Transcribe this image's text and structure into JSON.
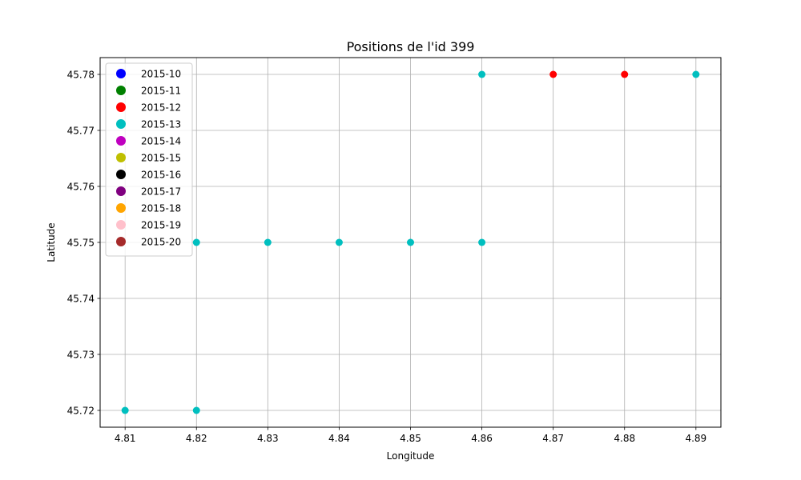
{
  "chart_data": {
    "type": "scatter",
    "title": "Positions de l'id 399",
    "xlabel": "Longitude",
    "ylabel": "Latitude",
    "xlim": [
      4.8065,
      4.8935
    ],
    "ylim": [
      45.717,
      45.783
    ],
    "xticks": [
      "4.81",
      "4.82",
      "4.83",
      "4.84",
      "4.85",
      "4.86",
      "4.87",
      "4.88",
      "4.89"
    ],
    "yticks": [
      "45.72",
      "45.73",
      "45.74",
      "45.75",
      "45.76",
      "45.77",
      "45.78"
    ],
    "grid": true,
    "legend_position": "upper-left",
    "series": [
      {
        "name": "2015-10",
        "color": "#0000ff",
        "points": []
      },
      {
        "name": "2015-11",
        "color": "#008000",
        "points": []
      },
      {
        "name": "2015-12",
        "color": "#ff0000",
        "points": [
          [
            4.87,
            45.78
          ],
          [
            4.88,
            45.78
          ]
        ]
      },
      {
        "name": "2015-13",
        "color": "#00bfbf",
        "points": [
          [
            4.81,
            45.72
          ],
          [
            4.82,
            45.72
          ],
          [
            4.82,
            45.75
          ],
          [
            4.83,
            45.75
          ],
          [
            4.84,
            45.75
          ],
          [
            4.85,
            45.75
          ],
          [
            4.86,
            45.75
          ],
          [
            4.86,
            45.78
          ],
          [
            4.89,
            45.78
          ]
        ]
      },
      {
        "name": "2015-14",
        "color": "#bf00bf",
        "points": []
      },
      {
        "name": "2015-15",
        "color": "#bfbf00",
        "points": []
      },
      {
        "name": "2015-16",
        "color": "#000000",
        "points": []
      },
      {
        "name": "2015-17",
        "color": "#800080",
        "points": []
      },
      {
        "name": "2015-18",
        "color": "#ffa500",
        "points": []
      },
      {
        "name": "2015-19",
        "color": "#ffc0cb",
        "points": []
      },
      {
        "name": "2015-20",
        "color": "#a52a2a",
        "points": []
      }
    ]
  }
}
